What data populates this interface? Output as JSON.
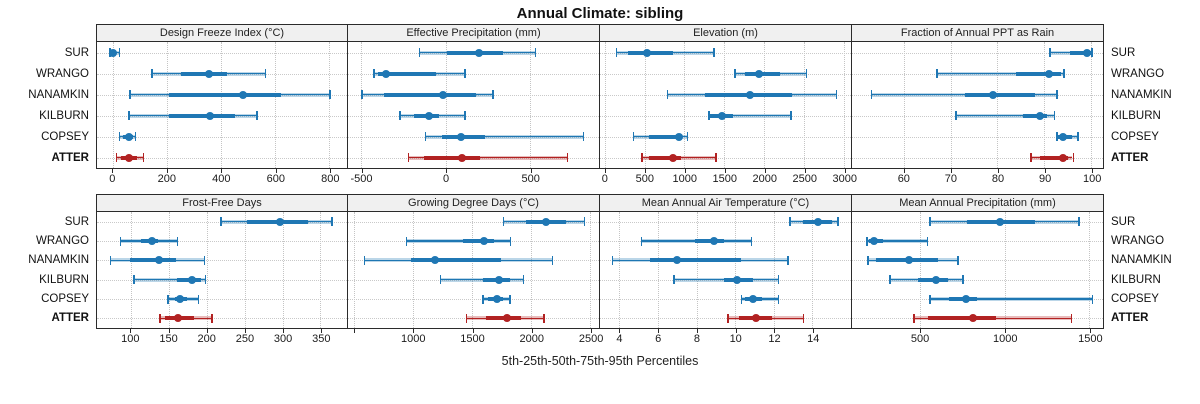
{
  "title": "Annual Climate: sibling",
  "xlabel": "5th-25th-50th-75th-95th Percentiles",
  "categories": [
    "SUR",
    "WRANGO",
    "NANAMKIN",
    "KILBURN",
    "COPSEY",
    "ATTER"
  ],
  "highlight_category": "ATTER",
  "colors": {
    "series_blue": "#1f77b4",
    "series_red": "#b22222",
    "header_bg": "#f0f0f0",
    "panel_border": "#2b2b2b",
    "grid": "#c9c9c9"
  },
  "chart_data": {
    "type": "scatter",
    "subtype": "horizontal-percentile-intervals",
    "percentiles": [
      "5th",
      "25th",
      "50th",
      "75th",
      "95th"
    ],
    "title": "Annual Climate: sibling",
    "xlabel": "5th-25th-50th-75th-95th Percentiles",
    "grid": "dotted",
    "layout": {
      "rows": 2,
      "cols": 4,
      "row_labels_both_sides": true
    },
    "panels": [
      {
        "title": "Design Freeze Index (°C)",
        "domain": [
          -60,
          865
        ],
        "ticks": [
          0,
          200,
          400,
          600,
          800
        ],
        "tick_labels": [
          "0",
          "200",
          "400",
          "600",
          "800"
        ],
        "series": [
          [
            -15,
            -5,
            0,
            10,
            20
          ],
          [
            140,
            250,
            355,
            420,
            560
          ],
          [
            60,
            205,
            480,
            620,
            800
          ],
          [
            55,
            205,
            358,
            450,
            530
          ],
          [
            20,
            35,
            60,
            73,
            80
          ],
          [
            10,
            30,
            60,
            88,
            110
          ]
        ]
      },
      {
        "title": "Effective Precipitation (mm)",
        "domain": [
          -580,
          910
        ],
        "ticks": [
          -500,
          0,
          500
        ],
        "tick_labels": [
          "-500",
          "0",
          "500"
        ],
        "series": [
          [
            -160,
            10,
            195,
            340,
            530
          ],
          [
            -430,
            -400,
            -355,
            -60,
            110
          ],
          [
            -500,
            -365,
            -15,
            180,
            275
          ],
          [
            -275,
            -190,
            -100,
            -40,
            110
          ],
          [
            -125,
            -20,
            90,
            235,
            815
          ],
          [
            -225,
            -130,
            95,
            205,
            720
          ]
        ]
      },
      {
        "title": "Elevation (m)",
        "domain": [
          -60,
          3090
        ],
        "ticks": [
          0,
          500,
          1000,
          1500,
          2000,
          2500,
          3000
        ],
        "tick_labels": [
          "0",
          "500",
          "1000",
          "1500",
          "2000",
          "2500",
          "3000"
        ],
        "series": [
          [
            135,
            290,
            530,
            860,
            1360
          ],
          [
            1625,
            1760,
            1935,
            2195,
            2520
          ],
          [
            780,
            1260,
            1820,
            2350,
            2900
          ],
          [
            1300,
            1325,
            1475,
            1615,
            2330
          ],
          [
            350,
            550,
            930,
            970,
            1030
          ],
          [
            460,
            560,
            850,
            955,
            1385
          ]
        ]
      },
      {
        "title": "Fraction of Annual PPT as Rain",
        "domain": [
          49,
          102.5
        ],
        "ticks": [
          60,
          70,
          80,
          90,
          100
        ],
        "tick_labels": [
          "60",
          "70",
          "80",
          "90",
          "100"
        ],
        "series": [
          [
            91,
            95.5,
            99,
            100,
            100
          ],
          [
            67,
            84,
            91,
            93.5,
            94
          ],
          [
            53,
            73,
            79,
            88,
            92.5
          ],
          [
            71,
            85.5,
            89,
            90.5,
            92
          ],
          [
            92.5,
            93,
            94,
            96,
            97
          ],
          [
            87,
            89,
            94,
            95,
            96
          ]
        ]
      },
      {
        "title": "Frost-Free Days",
        "domain": [
          55,
          385
        ],
        "ticks": [
          100,
          150,
          200,
          250,
          300,
          350
        ],
        "tick_labels": [
          "100",
          "150",
          "200",
          "250",
          "300",
          "350"
        ],
        "series": [
          [
            218,
            253,
            296,
            334,
            364
          ],
          [
            85,
            113,
            128,
            135,
            160
          ],
          [
            72,
            99,
            137,
            159,
            196
          ],
          [
            103,
            161,
            180,
            192,
            197
          ],
          [
            148,
            158,
            164,
            174,
            188
          ],
          [
            137,
            145,
            162,
            183,
            206
          ]
        ]
      },
      {
        "title": "Growing Degree Days (°C)",
        "domain": [
          450,
          2575
        ],
        "ticks": [
          500,
          1000,
          1500,
          2000,
          2500
        ],
        "tick_labels": [
          "",
          "1000",
          "1500",
          "2000",
          "2500"
        ],
        "series": [
          [
            1760,
            1955,
            2130,
            2295,
            2445
          ],
          [
            940,
            1420,
            1605,
            1685,
            1820
          ],
          [
            585,
            985,
            1190,
            1745,
            2175
          ],
          [
            1225,
            1595,
            1730,
            1820,
            1930
          ],
          [
            1585,
            1635,
            1710,
            1760,
            1815
          ],
          [
            1445,
            1620,
            1800,
            1915,
            2105
          ]
        ]
      },
      {
        "title": "Mean Annual Air Temperature (°C)",
        "domain": [
          3,
          16
        ],
        "ticks": [
          4,
          6,
          8,
          10,
          12,
          14
        ],
        "tick_labels": [
          "4",
          "6",
          "8",
          "10",
          "12",
          "14"
        ],
        "series": [
          [
            12.8,
            13.5,
            14.3,
            15.0,
            15.3
          ],
          [
            5.1,
            7.9,
            8.9,
            9.4,
            10.8
          ],
          [
            3.6,
            5.6,
            7.0,
            10.3,
            12.7
          ],
          [
            6.8,
            9.4,
            10.1,
            10.9,
            12.2
          ],
          [
            10.3,
            10.5,
            10.9,
            11.4,
            12.2
          ],
          [
            9.6,
            10.2,
            11.1,
            11.9,
            13.5
          ]
        ]
      },
      {
        "title": "Mean Annual Precipitation (mm)",
        "domain": [
          100,
          1580
        ],
        "ticks": [
          500,
          1000,
          1500
        ],
        "tick_labels": [
          "500",
          "1000",
          "1500"
        ],
        "series": [
          [
            555,
            780,
            975,
            1180,
            1435
          ],
          [
            185,
            200,
            230,
            280,
            540
          ],
          [
            190,
            240,
            435,
            610,
            720
          ],
          [
            320,
            490,
            595,
            665,
            750
          ],
          [
            555,
            670,
            770,
            840,
            1515
          ],
          [
            460,
            550,
            815,
            950,
            1390
          ]
        ]
      }
    ]
  }
}
